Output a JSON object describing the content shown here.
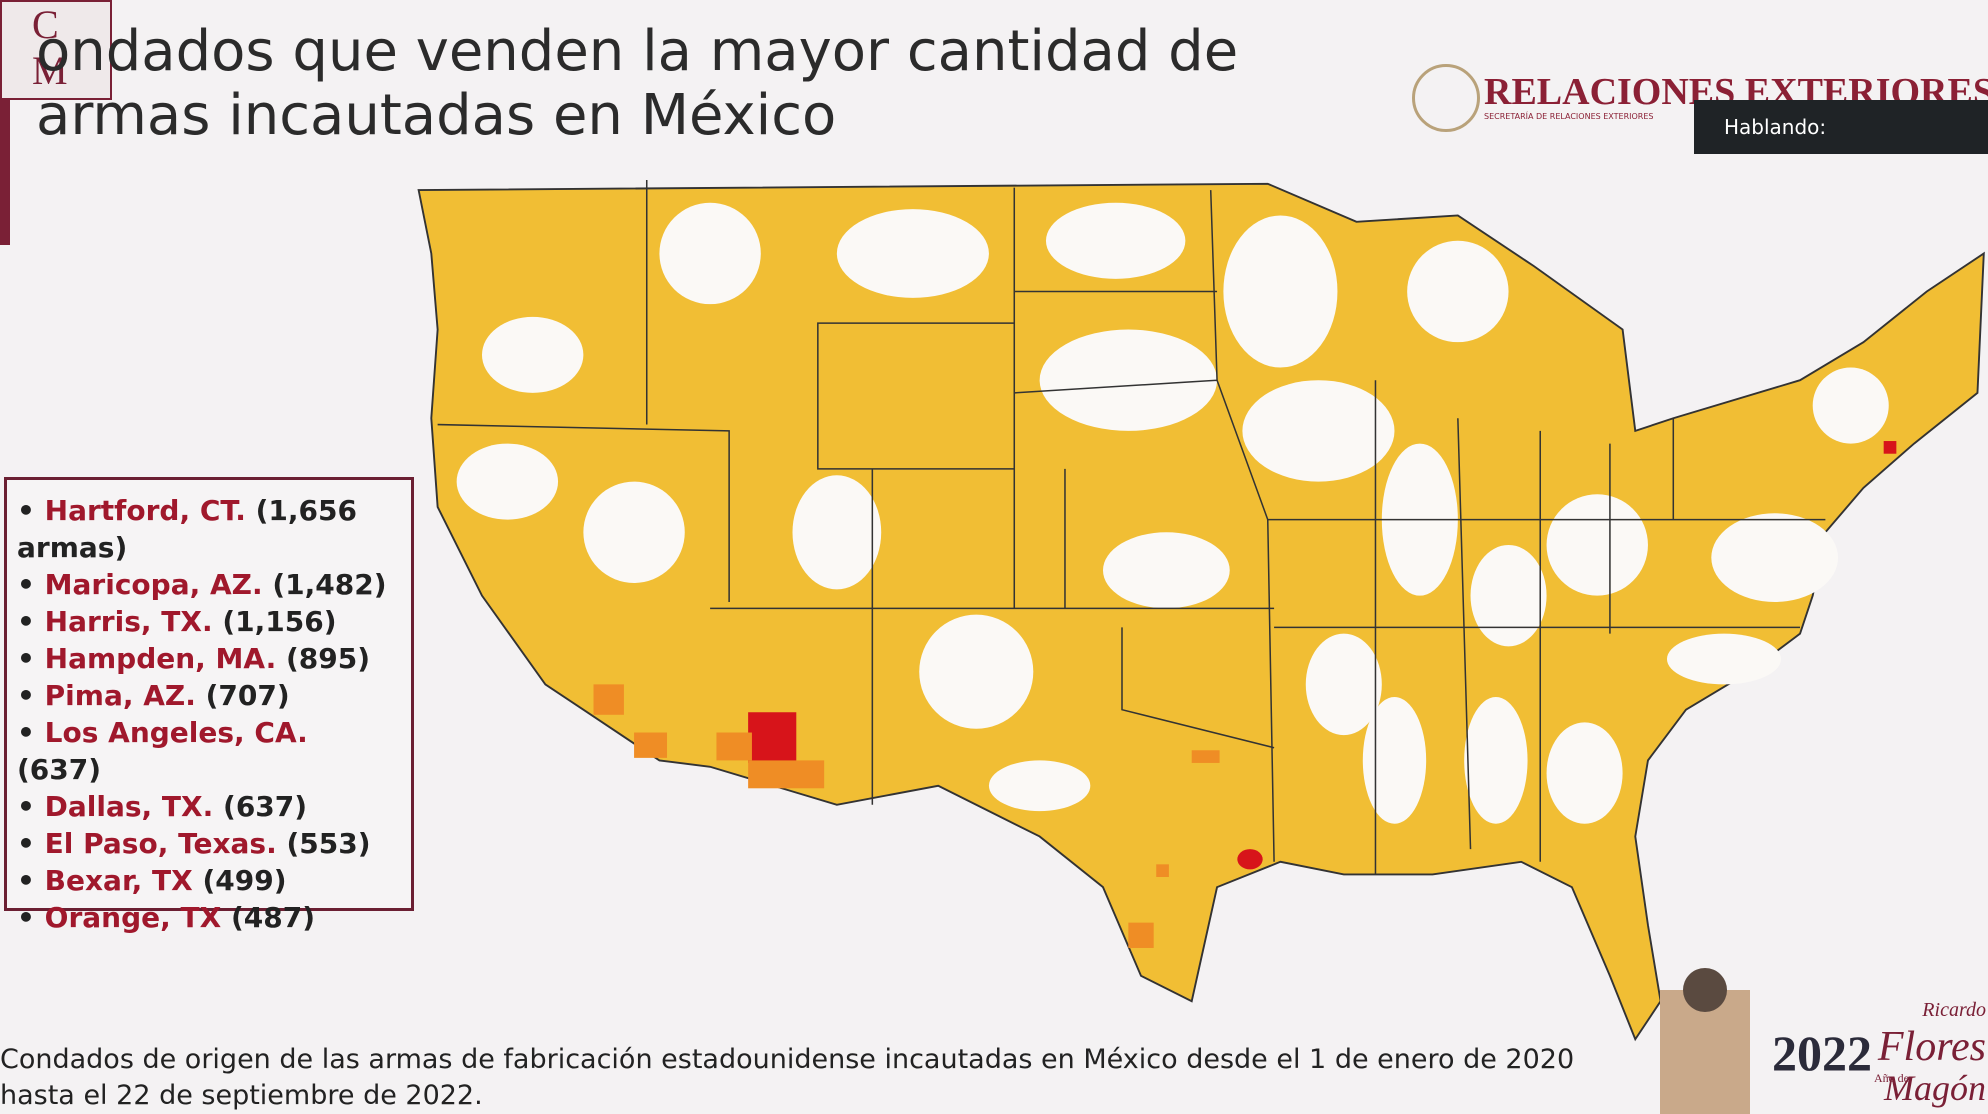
{
  "header": {
    "logo": [
      "C",
      "M"
    ],
    "title": [
      "ondados que venden la mayor cantidad de",
      "armas incautadas en México"
    ],
    "agency": "RELACIONES EXTERIORES",
    "agency_sub": "SECRETARÍA DE RELACIONES EXTERIORES"
  },
  "overlay": {
    "label": "Hablando:"
  },
  "list": {
    "items": [
      {
        "name": "Hartford, CT.",
        "detail": "(1,656 armas)"
      },
      {
        "name": "Maricopa, AZ.",
        "detail": "(1,482)"
      },
      {
        "name": "Harris, TX.",
        "detail": "(1,156)"
      },
      {
        "name": "Hampden, MA.",
        "detail": "(895)"
      },
      {
        "name": "Pima, AZ.",
        "detail": "(707)"
      },
      {
        "name": "Los Angeles, CA.",
        "detail": "(637)"
      },
      {
        "name": "Dallas, TX.",
        "detail": "(637)"
      },
      {
        "name": "El Paso, Texas.",
        "detail": "(553)"
      },
      {
        "name": "Bexar, TX",
        "detail": "(499)"
      },
      {
        "name": "Orange, TX",
        "detail": "(487)"
      }
    ]
  },
  "footnote": [
    "Condados de origen de las armas de fabricación estadounidense incautadas en México desde el 1 de enero de 2020",
    "hasta el 22 de septiembre de 2022."
  ],
  "badge": {
    "year": "2022",
    "caption": "Año de",
    "name": [
      "Ricardo",
      "Flores",
      "Magón"
    ]
  }
}
